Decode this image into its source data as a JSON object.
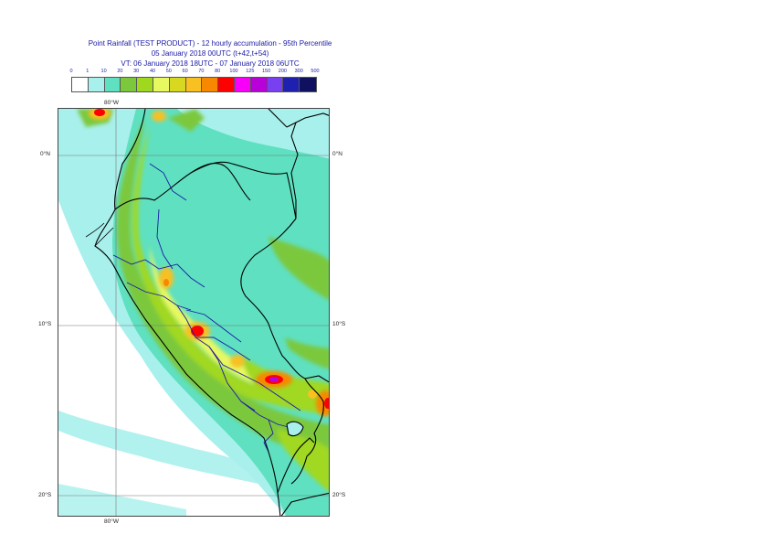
{
  "title": {
    "line1": "Point Rainfall (TEST PRODUCT) - 12 hourly accumulation - 95th Percentile",
    "line2": "05 January 2018 00UTC (t+42,t+54)",
    "line3": "VT: 06 January 2018 18UTC - 07 January 2018 06UTC"
  },
  "legend": {
    "ticks": [
      "0",
      "1",
      "10",
      "20",
      "30",
      "40",
      "50",
      "60",
      "70",
      "80",
      "100",
      "125",
      "150",
      "200",
      "300",
      "500"
    ],
    "colors": [
      "#ffffff",
      "#a8f0ec",
      "#5fe0c0",
      "#7cc83c",
      "#a0d820",
      "#e8f860",
      "#d8d820",
      "#f8c020",
      "#f88800",
      "#ff0000",
      "#f800f8",
      "#b800d8",
      "#7840f0",
      "#2020b0",
      "#101060"
    ]
  },
  "axes": {
    "top_lon": "80°W",
    "bottom_lon": "80°W",
    "lat_labels": [
      "0°N",
      "10°S",
      "20°S"
    ]
  },
  "colors": {
    "ocean_light": "#a8f0ec",
    "land_base": "#5fe0c0",
    "border_country": "#000000",
    "border_region": "#1a1aa6"
  }
}
